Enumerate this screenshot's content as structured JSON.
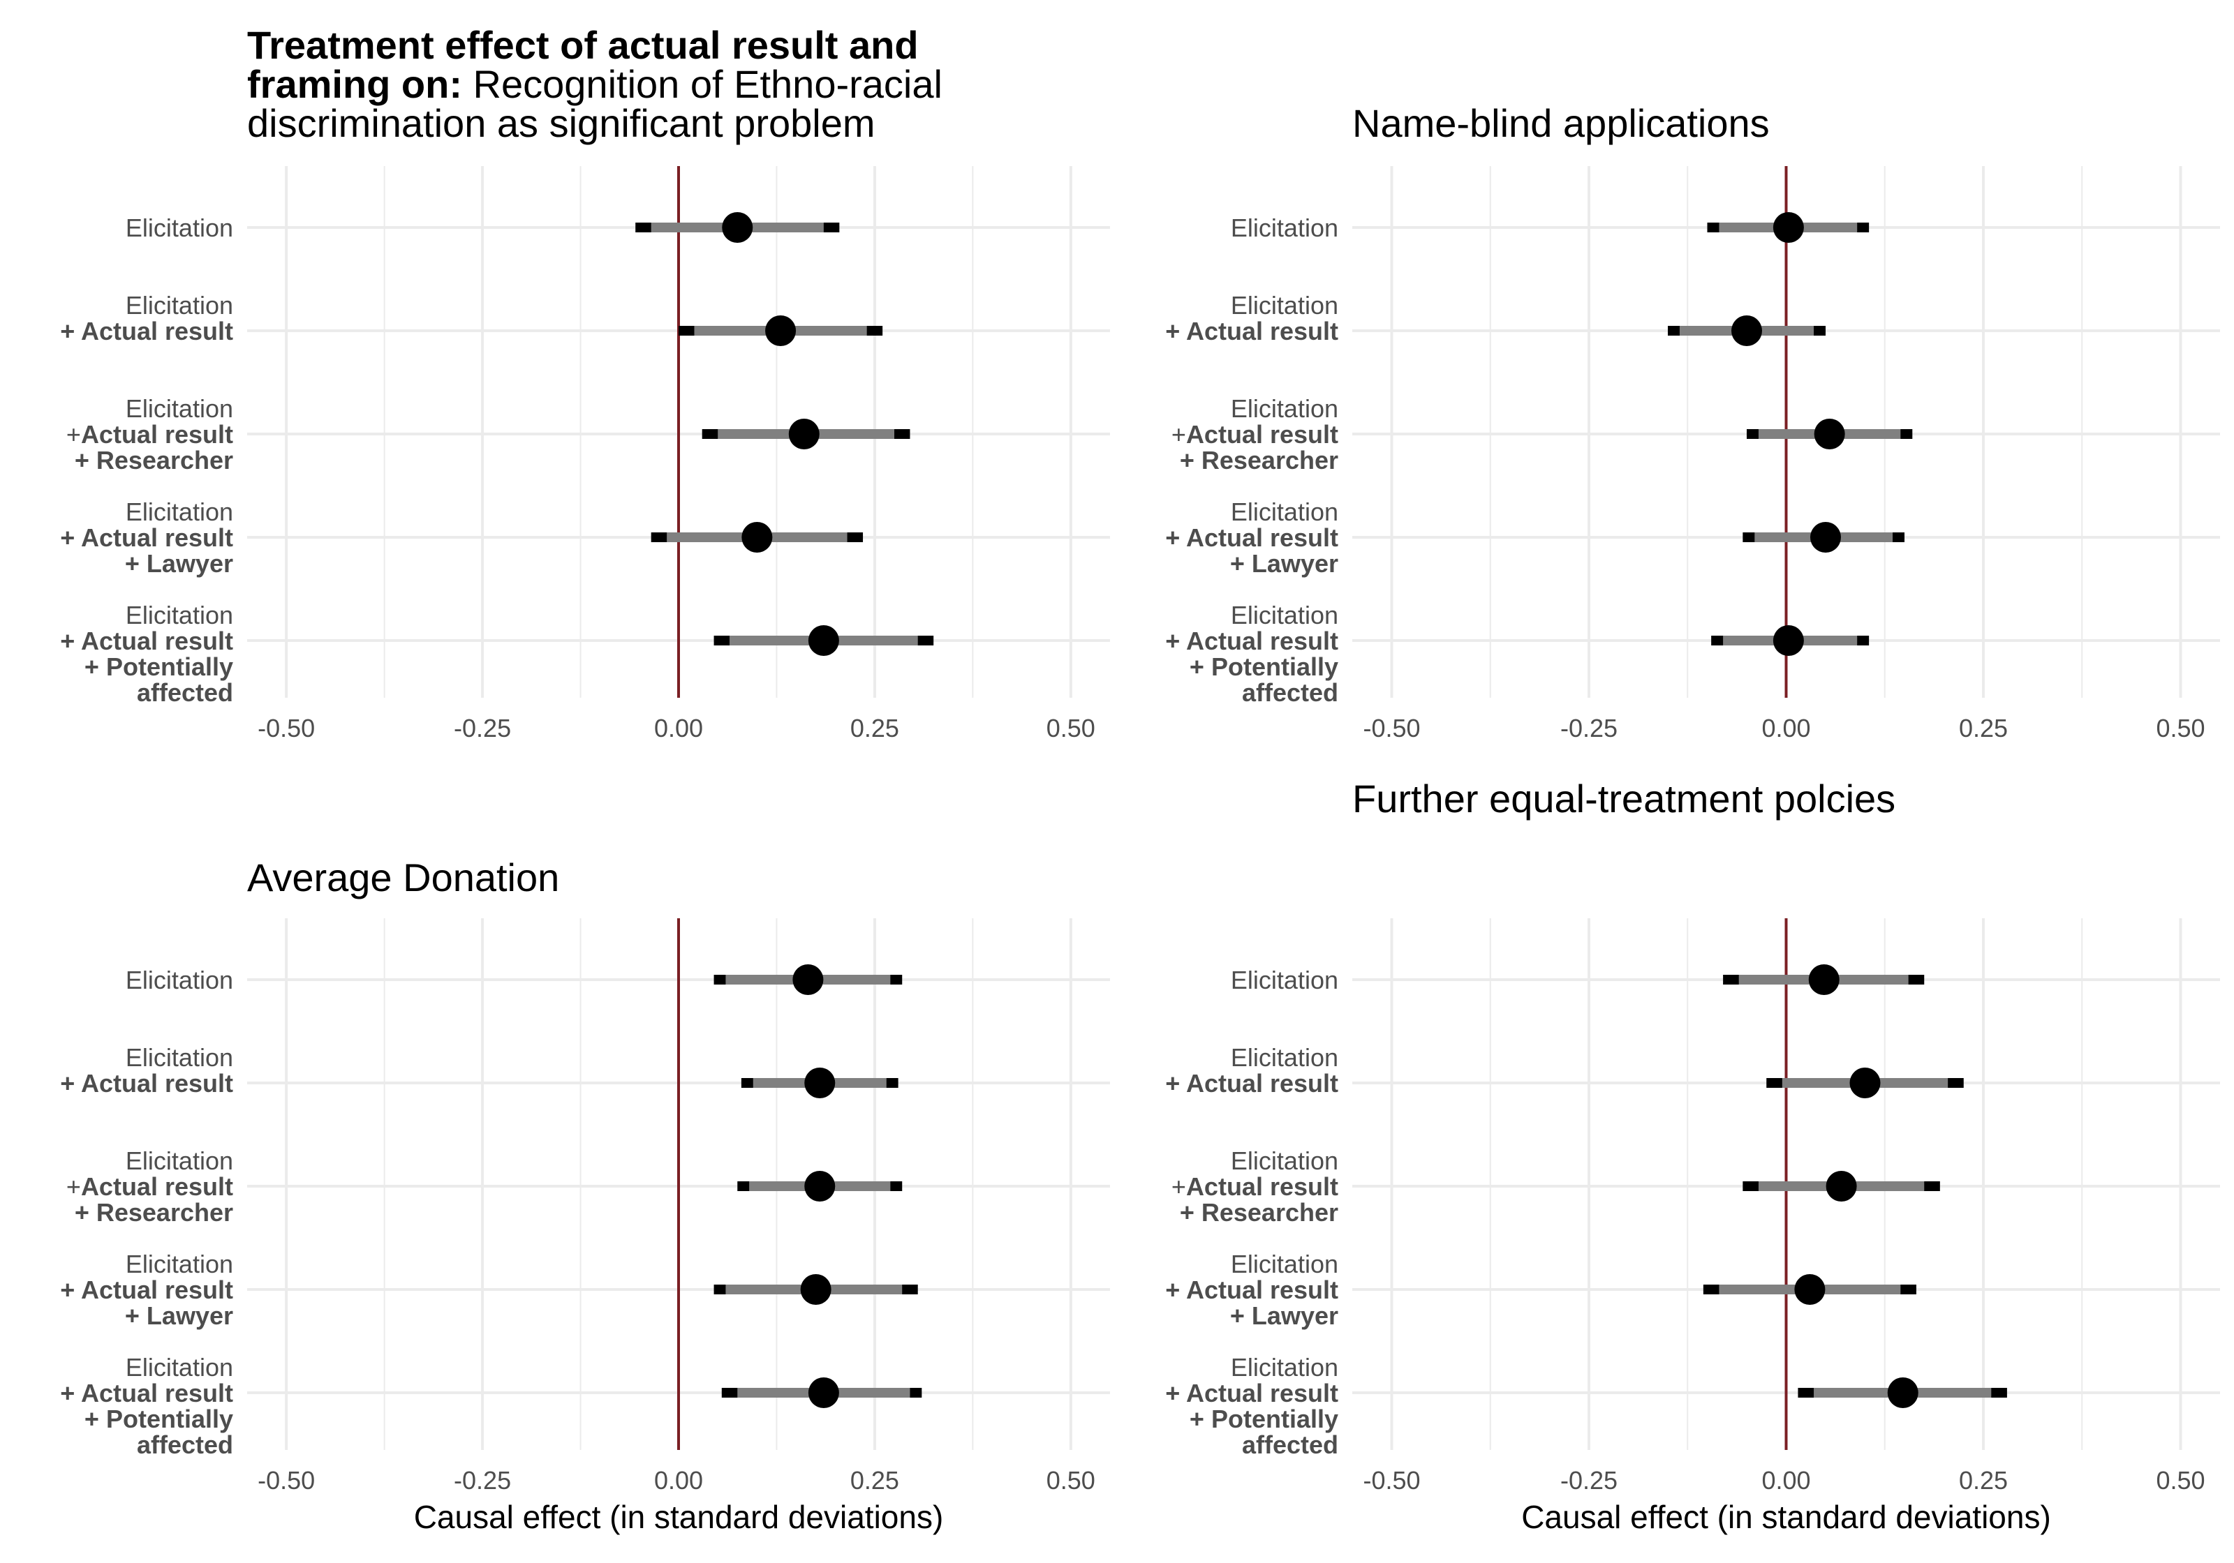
{
  "chart_data": [
    {
      "type": "dot-and-whisker",
      "title_bold": "Treatment effect of actual result and framing on:",
      "title_rest": "Recognition of Ethno-racial discrimination as significant problem",
      "title_lines": [
        [
          {
            "text": "Treatment effect of actual result and",
            "bold": true
          }
        ],
        [
          {
            "text": "framing on:",
            "bold": true
          },
          {
            "text": " Recognition of Ethno-racial",
            "bold": false
          }
        ],
        [
          {
            "text": "discrimination as significant problem",
            "bold": false
          }
        ]
      ],
      "xlabel": "",
      "xlim": [
        -0.55,
        0.55
      ],
      "xticks": [
        -0.5,
        -0.25,
        0.0,
        0.25,
        0.5
      ],
      "xtick_labels": [
        "-0.50",
        "-0.25",
        "0.00",
        "0.25",
        "0.50"
      ],
      "points": [
        {
          "estimate": 0.075,
          "ci90": [
            -0.035,
            0.185
          ],
          "ci95": [
            -0.055,
            0.205
          ]
        },
        {
          "estimate": 0.13,
          "ci90": [
            0.02,
            0.24
          ],
          "ci95": [
            0.0,
            0.26
          ]
        },
        {
          "estimate": 0.16,
          "ci90": [
            0.05,
            0.275
          ],
          "ci95": [
            0.03,
            0.295
          ]
        },
        {
          "estimate": 0.1,
          "ci90": [
            -0.015,
            0.215
          ],
          "ci95": [
            -0.035,
            0.235
          ]
        },
        {
          "estimate": 0.185,
          "ci90": [
            0.065,
            0.305
          ],
          "ci95": [
            0.045,
            0.325
          ]
        }
      ]
    },
    {
      "type": "dot-and-whisker",
      "title": "Name-blind applications",
      "title_lines": [
        [
          {
            "text": "Name-blind applications",
            "bold": false
          }
        ]
      ],
      "xlabel": "",
      "xlim": [
        -0.55,
        0.55
      ],
      "xticks": [
        -0.5,
        -0.25,
        0.0,
        0.25,
        0.5
      ],
      "xtick_labels": [
        "-0.50",
        "-0.25",
        "0.00",
        "0.25",
        "0.50"
      ],
      "points": [
        {
          "estimate": 0.003,
          "ci90": [
            -0.085,
            0.09
          ],
          "ci95": [
            -0.1,
            0.105
          ]
        },
        {
          "estimate": -0.05,
          "ci90": [
            -0.135,
            0.035
          ],
          "ci95": [
            -0.15,
            0.05
          ]
        },
        {
          "estimate": 0.055,
          "ci90": [
            -0.035,
            0.145
          ],
          "ci95": [
            -0.05,
            0.16
          ]
        },
        {
          "estimate": 0.05,
          "ci90": [
            -0.04,
            0.135
          ],
          "ci95": [
            -0.055,
            0.15
          ]
        },
        {
          "estimate": 0.003,
          "ci90": [
            -0.08,
            0.09
          ],
          "ci95": [
            -0.095,
            0.105
          ]
        }
      ]
    },
    {
      "type": "dot-and-whisker",
      "title": "Average Donation",
      "title_lines": [
        [
          {
            "text": "Average Donation",
            "bold": false
          }
        ]
      ],
      "xlabel": "Causal effect (in standard deviations)",
      "xlim": [
        -0.55,
        0.55
      ],
      "xticks": [
        -0.5,
        -0.25,
        0.0,
        0.25,
        0.5
      ],
      "xtick_labels": [
        "-0.50",
        "-0.25",
        "0.00",
        "0.25",
        "0.50"
      ],
      "points": [
        {
          "estimate": 0.165,
          "ci90": [
            0.06,
            0.27
          ],
          "ci95": [
            0.045,
            0.285
          ]
        },
        {
          "estimate": 0.18,
          "ci90": [
            0.095,
            0.265
          ],
          "ci95": [
            0.08,
            0.28
          ]
        },
        {
          "estimate": 0.18,
          "ci90": [
            0.09,
            0.27
          ],
          "ci95": [
            0.075,
            0.285
          ]
        },
        {
          "estimate": 0.175,
          "ci90": [
            0.06,
            0.285
          ],
          "ci95": [
            0.045,
            0.305
          ]
        },
        {
          "estimate": 0.185,
          "ci90": [
            0.075,
            0.295
          ],
          "ci95": [
            0.055,
            0.31
          ]
        }
      ]
    },
    {
      "type": "dot-and-whisker",
      "title": "Further equal-treatment polcies",
      "title_lines": [
        [
          {
            "text": "Further equal-treatment polcies",
            "bold": false
          }
        ]
      ],
      "xlabel": "Causal effect (in standard deviations)",
      "xlim": [
        -0.55,
        0.55
      ],
      "xticks": [
        -0.5,
        -0.25,
        0.0,
        0.25,
        0.5
      ],
      "xtick_labels": [
        "-0.50",
        "-0.25",
        "0.00",
        "0.25",
        "0.50"
      ],
      "points": [
        {
          "estimate": 0.048,
          "ci90": [
            -0.06,
            0.155
          ],
          "ci95": [
            -0.08,
            0.175
          ]
        },
        {
          "estimate": 0.1,
          "ci90": [
            -0.005,
            0.205
          ],
          "ci95": [
            -0.025,
            0.225
          ]
        },
        {
          "estimate": 0.07,
          "ci90": [
            -0.035,
            0.175
          ],
          "ci95": [
            -0.055,
            0.195
          ]
        },
        {
          "estimate": 0.03,
          "ci90": [
            -0.085,
            0.145
          ],
          "ci95": [
            -0.105,
            0.165
          ]
        },
        {
          "estimate": 0.148,
          "ci90": [
            0.035,
            0.26
          ],
          "ci95": [
            0.015,
            0.28
          ]
        }
      ]
    }
  ],
  "y_categories": [
    [
      {
        "text": "Elicitation",
        "bold": false
      }
    ],
    [
      {
        "text": "Elicitation",
        "bold": false
      },
      {
        "text": "+ Actual result",
        "bold": true
      }
    ],
    [
      {
        "text": "Elicitation",
        "bold": false
      },
      {
        "text": "+Actual result",
        "bold": true,
        "prefix": "+",
        "suffix": "Actual result"
      },
      {
        "text": "+ Researcher",
        "bold": true
      }
    ],
    [
      {
        "text": "Elicitation",
        "bold": false
      },
      {
        "text": "+ Actual result",
        "bold": true
      },
      {
        "text": "+ Lawyer",
        "bold": true
      }
    ],
    [
      {
        "text": "Elicitation",
        "bold": false
      },
      {
        "text": "+ Actual result",
        "bold": true
      },
      {
        "text": "+ Potentially",
        "bold": true
      },
      {
        "text": "affected",
        "bold": true
      }
    ]
  ],
  "colors": {
    "zero_line": "#7a1f24",
    "ci90": "#808080",
    "ci95": "#000000",
    "point": "#000000",
    "grid": "#ebebeb"
  }
}
